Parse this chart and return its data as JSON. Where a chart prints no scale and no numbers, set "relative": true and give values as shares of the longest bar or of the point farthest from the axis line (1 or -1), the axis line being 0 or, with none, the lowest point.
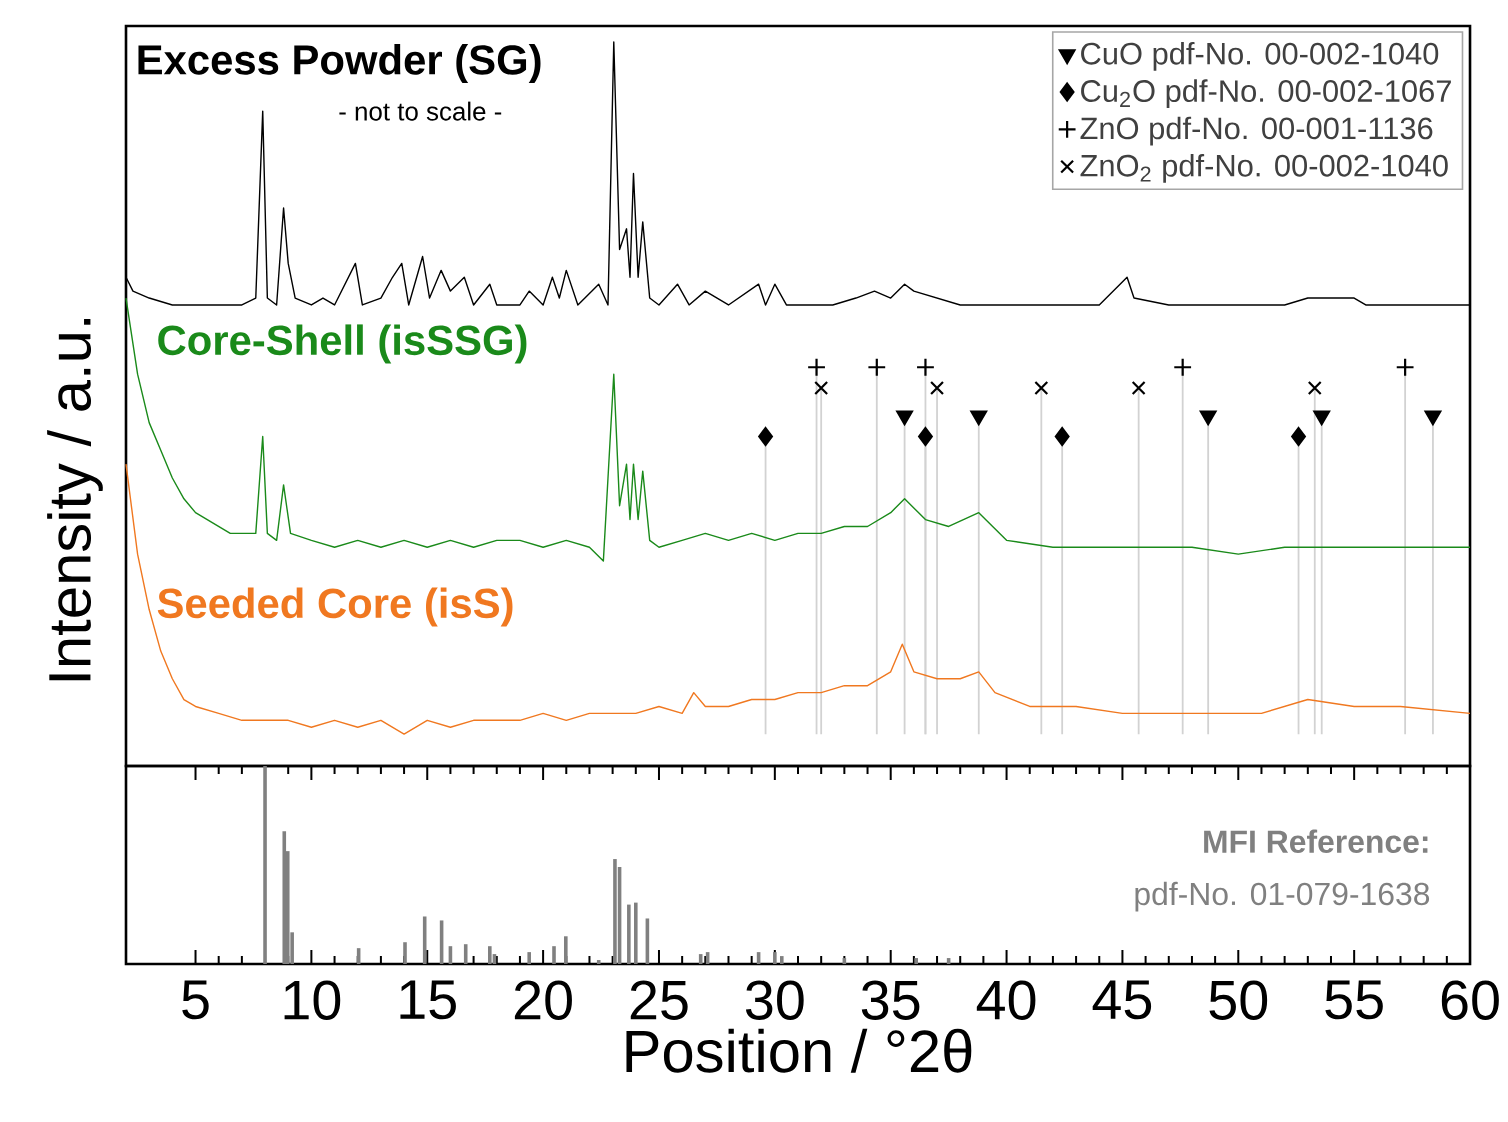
{
  "chart_data": [
    {
      "type": "line",
      "relative": true,
      "xlim": [
        2,
        60
      ],
      "tick_labels": false,
      "ylabel": "Intensity / a.u.",
      "legend": "top right",
      "annotations": [
        "- not to scale -"
      ],
      "series": [
        {
          "name": "Excess Powder (SG)",
          "color": "#000000",
          "x": [
            2.0,
            2.3,
            3,
            4,
            5,
            6,
            7,
            7.6,
            7.9,
            8.1,
            8.5,
            8.8,
            9.0,
            9.3,
            10,
            10.5,
            11,
            11.9,
            12.2,
            13,
            13.5,
            13.9,
            14.2,
            14.8,
            15.1,
            15.6,
            16,
            16.6,
            17,
            17.7,
            18,
            19,
            19.4,
            20,
            20.4,
            20.7,
            21,
            21.5,
            22.4,
            22.8,
            23.05,
            23.3,
            23.6,
            23.75,
            23.9,
            24.1,
            24.3,
            24.6,
            25,
            25.8,
            26.3,
            27,
            28,
            29.3,
            29.6,
            30,
            30.5,
            31.5,
            32.5,
            33.5,
            34.3,
            35,
            35.6,
            36,
            37,
            38,
            40,
            42,
            44,
            45.2,
            45.5,
            47,
            50,
            52,
            53,
            55,
            55.5,
            58,
            60
          ],
          "values": [
            0.66,
            0.64,
            0.63,
            0.62,
            0.62,
            0.62,
            0.62,
            0.63,
            0.9,
            0.63,
            0.62,
            0.76,
            0.68,
            0.63,
            0.62,
            0.63,
            0.62,
            0.68,
            0.62,
            0.63,
            0.66,
            0.68,
            0.62,
            0.69,
            0.63,
            0.67,
            0.64,
            0.66,
            0.62,
            0.65,
            0.62,
            0.62,
            0.64,
            0.62,
            0.66,
            0.63,
            0.67,
            0.62,
            0.65,
            0.62,
            1.0,
            0.7,
            0.73,
            0.66,
            0.81,
            0.66,
            0.74,
            0.63,
            0.62,
            0.65,
            0.62,
            0.64,
            0.62,
            0.65,
            0.62,
            0.65,
            0.62,
            0.62,
            0.62,
            0.63,
            0.64,
            0.63,
            0.65,
            0.64,
            0.63,
            0.62,
            0.62,
            0.62,
            0.62,
            0.66,
            0.63,
            0.62,
            0.62,
            0.62,
            0.63,
            0.63,
            0.62,
            0.62,
            0.62
          ]
        },
        {
          "name": "Core-Shell (isSSG)",
          "color": "#1a8a1a",
          "x": [
            2.0,
            2.5,
            3,
            3.5,
            4,
            4.5,
            5,
            5.5,
            6,
            6.5,
            7,
            7.6,
            7.9,
            8.1,
            8.5,
            8.8,
            9.1,
            10,
            11,
            12,
            13,
            14,
            15,
            16,
            17,
            18,
            19,
            20,
            21,
            22,
            22.6,
            23.05,
            23.3,
            23.6,
            23.75,
            23.9,
            24.1,
            24.3,
            24.6,
            25,
            26,
            27,
            28,
            29,
            30,
            31,
            32,
            33,
            34,
            35,
            35.6,
            36.5,
            37.5,
            38.8,
            40,
            42,
            44,
            46,
            48,
            50,
            52,
            54,
            56,
            58,
            60
          ],
          "values": [
            0.63,
            0.52,
            0.45,
            0.41,
            0.37,
            0.34,
            0.32,
            0.31,
            0.3,
            0.29,
            0.29,
            0.29,
            0.43,
            0.29,
            0.28,
            0.36,
            0.29,
            0.28,
            0.27,
            0.28,
            0.27,
            0.28,
            0.27,
            0.28,
            0.27,
            0.28,
            0.28,
            0.27,
            0.28,
            0.27,
            0.25,
            0.52,
            0.33,
            0.39,
            0.31,
            0.39,
            0.31,
            0.38,
            0.28,
            0.27,
            0.28,
            0.29,
            0.28,
            0.29,
            0.28,
            0.29,
            0.29,
            0.3,
            0.3,
            0.32,
            0.34,
            0.31,
            0.3,
            0.32,
            0.28,
            0.27,
            0.27,
            0.27,
            0.27,
            0.26,
            0.27,
            0.27,
            0.27,
            0.27,
            0.27
          ]
        },
        {
          "name": "Seeded Core (isS)",
          "color": "#f07820",
          "x": [
            2.0,
            2.5,
            3,
            3.5,
            4,
            4.5,
            5,
            6,
            7,
            8,
            9,
            10,
            11,
            12,
            13,
            14,
            15,
            16,
            17,
            18,
            19,
            20,
            21,
            22,
            23,
            24,
            25,
            26,
            26.5,
            27,
            28,
            29,
            30,
            31,
            32,
            33,
            34,
            35,
            35.5,
            36,
            37,
            38,
            38.8,
            39.5,
            41,
            43,
            45,
            47,
            49,
            51,
            53,
            55,
            57,
            60
          ],
          "values": [
            0.39,
            0.26,
            0.18,
            0.12,
            0.08,
            0.05,
            0.04,
            0.03,
            0.02,
            0.02,
            0.02,
            0.01,
            0.02,
            0.01,
            0.02,
            0.0,
            0.02,
            0.01,
            0.02,
            0.02,
            0.02,
            0.03,
            0.02,
            0.03,
            0.03,
            0.03,
            0.04,
            0.03,
            0.06,
            0.04,
            0.04,
            0.05,
            0.05,
            0.06,
            0.06,
            0.07,
            0.07,
            0.09,
            0.13,
            0.09,
            0.08,
            0.08,
            0.09,
            0.06,
            0.04,
            0.04,
            0.03,
            0.03,
            0.03,
            0.03,
            0.05,
            0.04,
            0.04,
            0.03
          ]
        },
        {
          "type": "lollipop",
          "name": "CuO pdf-No. 00-002-1040",
          "color": "#000000",
          "marker": "triangle",
          "x": [
            35.6,
            38.8,
            48.7,
            53.6,
            58.4
          ],
          "values": [
            0.46,
            0.46,
            0.46,
            0.46,
            0.46
          ]
        },
        {
          "type": "lollipop",
          "name": "Cu$_{2}$O pdf-No. 00-002-1067",
          "color": "#000000",
          "marker": "diamond",
          "x": [
            29.6,
            36.5,
            42.4,
            52.6
          ],
          "values": [
            0.43,
            0.43,
            0.43,
            0.43
          ]
        },
        {
          "type": "lollipop",
          "name": "ZnO pdf-No. 00-001-1136",
          "color": "#000000",
          "marker": "plus",
          "x": [
            31.8,
            34.4,
            36.5,
            47.6,
            57.2
          ],
          "values": [
            0.53,
            0.53,
            0.53,
            0.53,
            0.53
          ]
        },
        {
          "type": "lollipop",
          "name": "ZnO$_{2}$ pdf-No. 00-002-1040",
          "color": "#000000",
          "marker": "cross",
          "x": [
            32.0,
            37.0,
            41.5,
            45.7,
            53.3
          ],
          "values": [
            0.5,
            0.5,
            0.5,
            0.5,
            0.5
          ]
        }
      ]
    },
    {
      "type": "bar",
      "relative": true,
      "xlim": [
        2,
        60
      ],
      "xticks": [
        5,
        10,
        15,
        20,
        25,
        30,
        35,
        40,
        45,
        50,
        55,
        60
      ],
      "tick_labels": "x",
      "xlabel": "Position / °2θ",
      "color": "#808080",
      "annotations": [
        "MFI Reference:",
        "pdf-No. 01-079-1638"
      ],
      "x": [
        8.0,
        8.83,
        8.98,
        9.17,
        12.04,
        14.04,
        14.89,
        15.62,
        16.0,
        16.66,
        17.7,
        17.9,
        19.4,
        20.47,
        20.98,
        22.4,
        23.1,
        23.3,
        23.7,
        24.0,
        24.5,
        26.8,
        27.1,
        29.3,
        30.0,
        30.3,
        33.0,
        36.1,
        37.5
      ],
      "values": [
        1.0,
        0.67,
        0.57,
        0.16,
        0.08,
        0.11,
        0.24,
        0.22,
        0.09,
        0.1,
        0.09,
        0.05,
        0.06,
        0.09,
        0.14,
        0.02,
        0.53,
        0.49,
        0.3,
        0.31,
        0.23,
        0.05,
        0.06,
        0.06,
        0.06,
        0.04,
        0.03,
        0.03,
        0.03
      ]
    }
  ]
}
